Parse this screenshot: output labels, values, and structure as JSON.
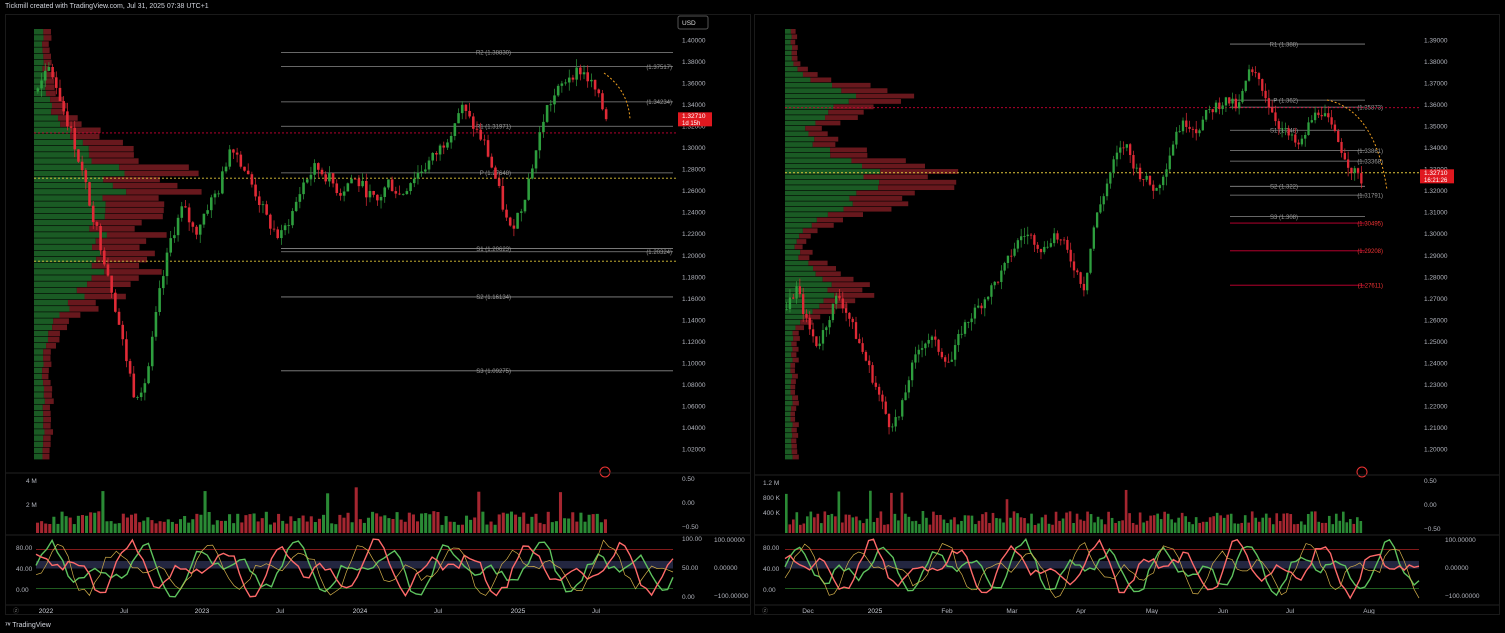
{
  "header": {
    "caption": "Tickmill created with TradingView.com, Jul 31, 2025 07:38 UTC+1"
  },
  "footer": {
    "brand": "TradingView",
    "logo": "tv-logo-icon"
  },
  "colors": {
    "up": "#2e9e3e",
    "down": "#e02a36",
    "pivot": "#7a7a7a",
    "resistance": "#e33",
    "dotted": "#e0c63b",
    "stoch": "#5ec35e",
    "rsi": "#ff6a6a",
    "bg": "#000000"
  },
  "chart_data": [
    {
      "type": "candlestick",
      "currency_badge": "USD",
      "y_ticks": [
        "1.40000",
        "1.38000",
        "1.36000",
        "1.34000",
        "1.32000",
        "1.30000",
        "1.28000",
        "1.26000",
        "1.24000",
        "1.22000",
        "1.20000",
        "1.18000",
        "1.16000",
        "1.14000",
        "1.12000",
        "1.10000",
        "1.08000",
        "1.06000",
        "1.04000",
        "1.02000"
      ],
      "ylim": [
        1.01,
        1.41
      ],
      "x_ticks": [
        "2022",
        "Jul",
        "2023",
        "Jul",
        "2024",
        "Jul",
        "2025",
        "Jul"
      ],
      "price_anchors": [
        1.352,
        1.375,
        1.34,
        1.305,
        1.262,
        1.218,
        1.175,
        1.12,
        1.07,
        1.085,
        1.16,
        1.215,
        1.245,
        1.22,
        1.245,
        1.262,
        1.305,
        1.282,
        1.258,
        1.232,
        1.215,
        1.238,
        1.268,
        1.282,
        1.272,
        1.258,
        1.272,
        1.262,
        1.248,
        1.268,
        1.255,
        1.272,
        1.282,
        1.295,
        1.312,
        1.338,
        1.32,
        1.302,
        1.265,
        1.222,
        1.245,
        1.288,
        1.335,
        1.352,
        1.368,
        1.372,
        1.355,
        1.328
      ],
      "last_price": "1.32710",
      "countdown": "1d 15h",
      "pivot_labels": [
        {
          "label": "R2 (1.38830)",
          "value": 1.3883
        },
        {
          "label": "(1.37517)",
          "value": 1.37517
        },
        {
          "label": "(1.34234)",
          "value": 1.34234
        },
        {
          "label": "R1 (1.31971)",
          "value": 1.31971
        },
        {
          "label": "P (1.27648)",
          "value": 1.27648
        },
        {
          "label": "S1 (1.20623)",
          "value": 1.20623
        },
        {
          "label": "(1.20324)",
          "value": 1.20324
        },
        {
          "label": "S2 (1.16134)",
          "value": 1.16134
        },
        {
          "label": "S3 (1.09275)",
          "value": 1.09275
        }
      ],
      "volume_ticks": [
        "4 M",
        "2 M"
      ],
      "volume_right_ticks": [
        "0.50",
        "0.00",
        "−0.50"
      ],
      "osc_left_ticks": [
        "80.00",
        "40.00",
        "0.00"
      ],
      "osc_mid_ticks": [
        "100.00",
        "50.00",
        "0.00"
      ],
      "osc_right_ticks": [
        "100.00000",
        "0.00000",
        "−100.00000"
      ]
    },
    {
      "type": "candlestick",
      "y_ticks": [
        "1.39000",
        "1.38000",
        "1.37000",
        "1.36000",
        "1.35000",
        "1.34000",
        "1.33000",
        "1.32000",
        "1.31000",
        "1.30000",
        "1.29000",
        "1.28000",
        "1.27000",
        "1.26000",
        "1.25000",
        "1.24000",
        "1.23000",
        "1.22000",
        "1.21000",
        "1.20000"
      ],
      "ylim": [
        1.195,
        1.395
      ],
      "x_ticks": [
        "Dec",
        "2025",
        "Feb",
        "Mar",
        "Apr",
        "May",
        "Jun",
        "Jul",
        "Aug"
      ],
      "price_anchors": [
        1.265,
        1.275,
        1.258,
        1.248,
        1.26,
        1.272,
        1.262,
        1.25,
        1.238,
        1.225,
        1.212,
        1.215,
        1.235,
        1.248,
        1.252,
        1.245,
        1.24,
        1.255,
        1.262,
        1.268,
        1.275,
        1.282,
        1.292,
        1.3,
        1.298,
        1.292,
        1.3,
        1.295,
        1.285,
        1.275,
        1.305,
        1.32,
        1.335,
        1.342,
        1.33,
        1.325,
        1.32,
        1.332,
        1.348,
        1.352,
        1.348,
        1.356,
        1.36,
        1.362,
        1.358,
        1.375,
        1.372,
        1.36,
        1.35,
        1.345,
        1.34,
        1.352,
        1.358,
        1.35,
        1.34,
        1.33,
        1.325
      ],
      "last_price": "1.32710",
      "countdown": "16:21:26",
      "pivot_labels": [
        {
          "label": "R1 (1.388)",
          "value": 1.388
        },
        {
          "label": "(1.35873)",
          "value": 1.35873
        },
        {
          "label": "P (1.362)",
          "value": 1.362
        },
        {
          "label": "S1 (1.348)",
          "value": 1.348
        },
        {
          "label": "(1.33861)",
          "value": 1.33861
        },
        {
          "label": "(1.33368)",
          "value": 1.33368
        },
        {
          "label": "S2 (1.322)",
          "value": 1.322
        },
        {
          "label": "(1.31791)",
          "value": 1.31791
        },
        {
          "label": "S3 (1.308)",
          "value": 1.308
        },
        {
          "label": "(1.30495)",
          "value": 1.30495
        },
        {
          "label": "(1.29208)",
          "value": 1.29208
        },
        {
          "label": "(1.27611)",
          "value": 1.27611
        }
      ],
      "volume_ticks": [
        "1.2 M",
        "800 K",
        "400 K"
      ],
      "volume_right_ticks": [
        "0.50",
        "0.00",
        "−0.50"
      ],
      "osc_left_ticks": [
        "80.00",
        "40.00",
        "0.00"
      ],
      "osc_right_ticks": [
        "100.00000",
        "0.00000",
        "−100.00000"
      ]
    }
  ]
}
